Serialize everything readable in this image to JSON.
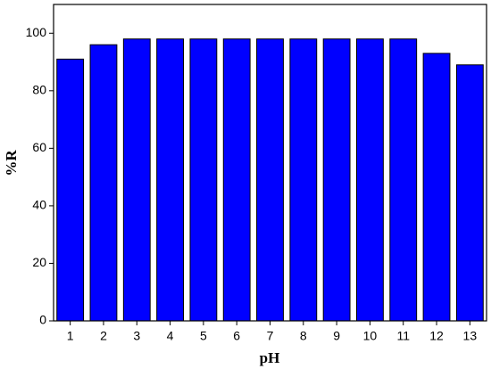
{
  "chart_data": {
    "type": "bar",
    "x_label": "pH",
    "y_label": "%R",
    "categories": [
      1,
      2,
      3,
      4,
      5,
      6,
      7,
      8,
      9,
      10,
      11,
      12,
      13
    ],
    "values": [
      91,
      96,
      98,
      98,
      98,
      98,
      98,
      98,
      98,
      98,
      98,
      93,
      89
    ],
    "color": "#0000ff",
    "ylim": [
      0,
      110
    ],
    "yticks": [
      0,
      20,
      40,
      60,
      80,
      100
    ],
    "grid": false
  }
}
